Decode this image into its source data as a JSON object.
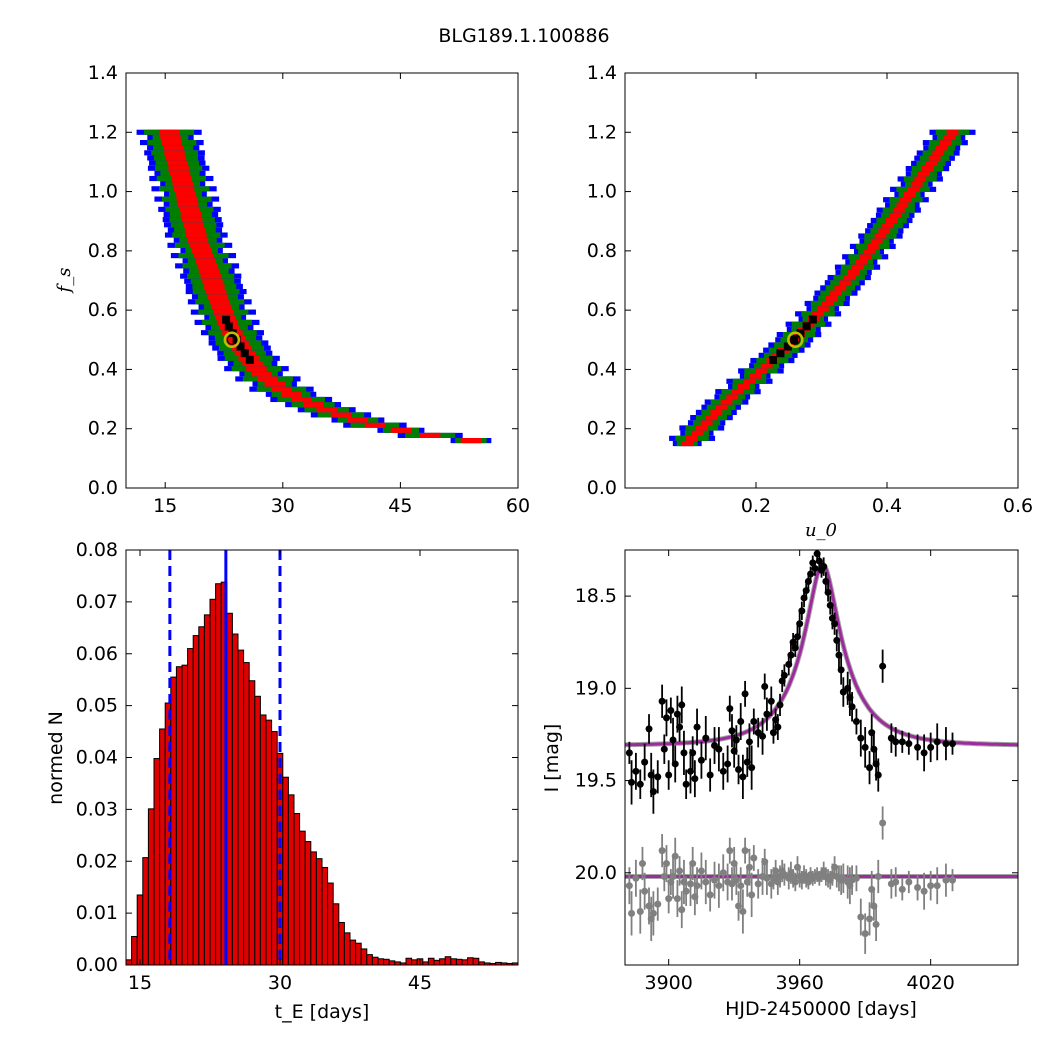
{
  "title": "BLG189.1.100886",
  "colors": {
    "level_1sigma": "#ff0000",
    "level_2sigma": "#007f00",
    "level_3sigma": "#0000ff",
    "best_cells": "#000000",
    "best_marker_edge": "#bfbf00",
    "hist_bar": "#e00000",
    "hist_lines": "#0000ff",
    "model_curve": "#9e2b9e",
    "data_points": "#000000",
    "residual_points": "#808080"
  },
  "chart_data": [
    {
      "id": "tE-fs",
      "type": "heatmap",
      "xlabel": "",
      "ylabel": "f_s",
      "xlim": [
        10,
        60
      ],
      "ylim": [
        0.0,
        1.4
      ],
      "xticks": [
        "15",
        "30",
        "45",
        "60"
      ],
      "yticks": [
        "0.0",
        "0.2",
        "0.4",
        "0.6",
        "0.8",
        "1.0",
        "1.2",
        "1.4"
      ],
      "band_centerline": [
        [
          15.5,
          1.2
        ],
        [
          17,
          1.05
        ],
        [
          19,
          0.85
        ],
        [
          21,
          0.7
        ],
        [
          23,
          0.55
        ],
        [
          25,
          0.46
        ],
        [
          27,
          0.39
        ],
        [
          30,
          0.33
        ],
        [
          33,
          0.29
        ],
        [
          37,
          0.25
        ],
        [
          42,
          0.21
        ],
        [
          48,
          0.18
        ],
        [
          54,
          0.16
        ]
      ],
      "band_half_width_x": {
        "red": 1.3,
        "green": 2.0,
        "blue": 2.6
      },
      "best_fit": {
        "x": 23.5,
        "y": 0.5
      }
    },
    {
      "id": "u0-fs",
      "type": "heatmap",
      "xlabel": "u_0",
      "ylabel": "",
      "xlim": [
        0.0,
        0.6
      ],
      "ylim": [
        0.0,
        1.4
      ],
      "xticks": [
        "0.2",
        "0.4",
        "0.6"
      ],
      "yticks": [
        "0.0",
        "0.2",
        "0.4",
        "0.6",
        "0.8",
        "1.0",
        "1.2",
        "1.4"
      ],
      "band_centerline": [
        [
          0.095,
          0.15
        ],
        [
          0.15,
          0.28
        ],
        [
          0.2,
          0.38
        ],
        [
          0.25,
          0.48
        ],
        [
          0.3,
          0.6
        ],
        [
          0.35,
          0.73
        ],
        [
          0.4,
          0.88
        ],
        [
          0.45,
          1.04
        ],
        [
          0.5,
          1.2
        ]
      ],
      "band_half_width_x": {
        "red": 0.009,
        "green": 0.016,
        "blue": 0.022
      },
      "best_fit": {
        "x": 0.26,
        "y": 0.5
      }
    },
    {
      "id": "tE-hist",
      "type": "bar",
      "xlabel": "t_E  [days]",
      "ylabel": "normed N",
      "xlim": [
        13.5,
        55.5
      ],
      "ylim": [
        0.0,
        0.08
      ],
      "xticks": [
        "15",
        "30",
        "45"
      ],
      "yticks": [
        "0.00",
        "0.01",
        "0.02",
        "0.03",
        "0.04",
        "0.05",
        "0.06",
        "0.07",
        "0.08"
      ],
      "bin_width": 0.6,
      "x_start": 13.5,
      "values": [
        0.001,
        0.0055,
        0.0135,
        0.0207,
        0.0301,
        0.0398,
        0.0455,
        0.0505,
        0.0555,
        0.0575,
        0.0578,
        0.061,
        0.0635,
        0.0652,
        0.0675,
        0.0705,
        0.0735,
        0.0738,
        0.0678,
        0.0638,
        0.0607,
        0.0583,
        0.0548,
        0.0518,
        0.0482,
        0.0472,
        0.045,
        0.0408,
        0.0362,
        0.0328,
        0.0292,
        0.0258,
        0.0238,
        0.0218,
        0.0205,
        0.0188,
        0.0158,
        0.0118,
        0.0082,
        0.0062,
        0.0048,
        0.0042,
        0.0031,
        0.002,
        0.0015,
        0.0012,
        0.0011,
        0.0008,
        0.0006,
        0.0004,
        0.0013,
        0.001,
        0.0012,
        0.0006,
        0.0013,
        0.0009,
        0.0012,
        0.0016,
        0.0012,
        0.0011,
        0.001,
        0.0014,
        0.0013,
        0.0006,
        0.0004,
        0.0003,
        0.0005,
        0.0004,
        0.0003,
        0.0004
      ],
      "median": 24.2,
      "percentiles": [
        18.2,
        30.0
      ]
    },
    {
      "id": "lightcurve",
      "type": "scatter",
      "xlabel": "HJD-2450000 [days]",
      "ylabel": "I [mag]",
      "xlim": [
        3880,
        4060
      ],
      "ylim": [
        20.5,
        18.25
      ],
      "xticks": [
        "3900",
        "3960",
        "4020"
      ],
      "yticks": [
        "18.5",
        "19.0",
        "19.5",
        "20.0"
      ],
      "model": {
        "t0": 3970.5,
        "tE": 24.2,
        "u0": 0.26,
        "fs": 0.5,
        "I_base": 19.31
      },
      "residual_baseline": 20.02,
      "data": [
        [
          3882,
          19.35,
          0.06
        ],
        [
          3883,
          19.51,
          0.12
        ],
        [
          3885,
          19.45,
          0.1
        ],
        [
          3887,
          19.52,
          0.08
        ],
        [
          3889,
          19.4,
          0.1
        ],
        [
          3891,
          19.22,
          0.08
        ],
        [
          3892,
          19.47,
          0.12
        ],
        [
          3893,
          19.56,
          0.12
        ],
        [
          3895,
          19.48,
          0.09
        ],
        [
          3897,
          19.07,
          0.09
        ],
        [
          3898,
          19.33,
          0.08
        ],
        [
          3899,
          19.16,
          0.1
        ],
        [
          3900,
          19.47,
          0.08
        ],
        [
          3901,
          19.12,
          0.07
        ],
        [
          3902,
          19.28,
          0.12
        ],
        [
          3903,
          19.41,
          0.1
        ],
        [
          3904,
          19.14,
          0.1
        ],
        [
          3905,
          19.21,
          0.08
        ],
        [
          3906,
          19.09,
          0.1
        ],
        [
          3907,
          19.35,
          0.12
        ],
        [
          3908,
          19.52,
          0.08
        ],
        [
          3910,
          19.45,
          0.12
        ],
        [
          3911,
          19.35,
          0.09
        ],
        [
          3912,
          19.49,
          0.1
        ],
        [
          3913,
          19.21,
          0.1
        ],
        [
          3915,
          19.39,
          0.1
        ],
        [
          3917,
          19.27,
          0.12
        ],
        [
          3919,
          19.47,
          0.09
        ],
        [
          3921,
          19.31,
          0.1
        ],
        [
          3923,
          19.33,
          0.12
        ],
        [
          3925,
          19.45,
          0.1
        ],
        [
          3927,
          19.41,
          0.1
        ],
        [
          3928,
          19.11,
          0.07
        ],
        [
          3929,
          19.23,
          0.09
        ],
        [
          3930,
          19.34,
          0.09
        ],
        [
          3931,
          19.28,
          0.08
        ],
        [
          3932,
          19.44,
          0.08
        ],
        [
          3933,
          19.18,
          0.1
        ],
        [
          3934,
          19.48,
          0.12
        ],
        [
          3935,
          19.03,
          0.07
        ],
        [
          3936,
          19.4,
          0.08
        ],
        [
          3937,
          19.29,
          0.1
        ],
        [
          3938,
          19.43,
          0.12
        ],
        [
          3939,
          19.18,
          0.07
        ],
        [
          3941,
          19.24,
          0.08
        ],
        [
          3943,
          19.26,
          0.1
        ],
        [
          3944,
          18.99,
          0.07
        ],
        [
          3945,
          19.14,
          0.09
        ],
        [
          3947,
          19.07,
          0.08
        ],
        [
          3948,
          19.24,
          0.06
        ],
        [
          3949,
          19.17,
          0.06
        ],
        [
          3950,
          19.21,
          0.07
        ],
        [
          3951,
          19.09,
          0.06
        ],
        [
          3952,
          18.96,
          0.06
        ],
        [
          3953,
          18.93,
          0.06
        ],
        [
          3955,
          18.87,
          0.06
        ],
        [
          3956,
          18.82,
          0.06
        ],
        [
          3957,
          18.75,
          0.05
        ],
        [
          3958,
          18.78,
          0.05
        ],
        [
          3959,
          18.72,
          0.06
        ],
        [
          3960,
          18.65,
          0.06
        ],
        [
          3961,
          18.58,
          0.05
        ],
        [
          3962,
          18.51,
          0.05
        ],
        [
          3963,
          18.47,
          0.05
        ],
        [
          3964,
          18.42,
          0.04
        ],
        [
          3965,
          18.38,
          0.04
        ],
        [
          3966,
          18.32,
          0.04
        ],
        [
          3967,
          18.35,
          0.04
        ],
        [
          3968,
          18.27,
          0.04
        ],
        [
          3969,
          18.31,
          0.04
        ],
        [
          3970,
          18.36,
          0.04
        ],
        [
          3971,
          18.34,
          0.05
        ],
        [
          3972,
          18.42,
          0.05
        ],
        [
          3973,
          18.48,
          0.05
        ],
        [
          3974,
          18.55,
          0.05
        ],
        [
          3975,
          18.62,
          0.06
        ],
        [
          3976,
          18.65,
          0.06
        ],
        [
          3977,
          18.74,
          0.06
        ],
        [
          3978,
          18.82,
          0.07
        ],
        [
          3979,
          18.9,
          0.08
        ],
        [
          3980,
          19.02,
          0.08
        ],
        [
          3982,
          19.0,
          0.09
        ],
        [
          3983,
          19.05,
          0.1
        ],
        [
          3984,
          19.1,
          0.08
        ],
        [
          3986,
          19.18,
          0.07
        ],
        [
          3988,
          19.27,
          0.1
        ],
        [
          3990,
          19.32,
          0.11
        ],
        [
          3992,
          19.43,
          0.09
        ],
        [
          3993,
          19.24,
          0.1
        ],
        [
          3994,
          19.33,
          0.08
        ],
        [
          3995,
          19.41,
          0.09
        ],
        [
          3996,
          19.47,
          0.09
        ],
        [
          3998,
          18.88,
          0.09
        ],
        [
          4002,
          19.27,
          0.08
        ],
        [
          4004,
          19.29,
          0.08
        ],
        [
          4007,
          19.29,
          0.06
        ],
        [
          4010,
          19.3,
          0.06
        ],
        [
          4014,
          19.32,
          0.07
        ],
        [
          4017,
          19.35,
          0.1
        ],
        [
          4020,
          19.32,
          0.08
        ],
        [
          4023,
          19.29,
          0.1
        ],
        [
          4027,
          19.3,
          0.09
        ],
        [
          4030,
          19.3,
          0.06
        ]
      ],
      "residuals": [
        [
          3882,
          20.07,
          0.1
        ],
        [
          3883,
          20.22,
          0.12
        ],
        [
          3885,
          20.03,
          0.1
        ],
        [
          3887,
          20.21,
          0.12
        ],
        [
          3888,
          19.95,
          0.09
        ],
        [
          3889,
          20.1,
          0.1
        ],
        [
          3891,
          20.18,
          0.1
        ],
        [
          3892,
          20.25,
          0.12
        ],
        [
          3893,
          20.22,
          0.12
        ],
        [
          3895,
          20.17,
          0.09
        ],
        [
          3897,
          19.88,
          0.09
        ],
        [
          3898,
          20.02,
          0.08
        ],
        [
          3899,
          19.95,
          0.1
        ],
        [
          3900,
          20.14,
          0.08
        ],
        [
          3901,
          20.05,
          0.07
        ],
        [
          3902,
          20.02,
          0.12
        ],
        [
          3903,
          19.91,
          0.1
        ],
        [
          3904,
          20.14,
          0.1
        ],
        [
          3905,
          19.99,
          0.08
        ],
        [
          3906,
          20.2,
          0.1
        ],
        [
          3907,
          20.05,
          0.12
        ],
        [
          3908,
          20.1,
          0.08
        ],
        [
          3910,
          20.06,
          0.12
        ],
        [
          3911,
          19.95,
          0.09
        ],
        [
          3912,
          20.13,
          0.1
        ],
        [
          3913,
          20.07,
          0.1
        ],
        [
          3915,
          19.99,
          0.1
        ],
        [
          3917,
          20.05,
          0.12
        ],
        [
          3919,
          20.12,
          0.09
        ],
        [
          3921,
          20.04,
          0.1
        ],
        [
          3923,
          20.07,
          0.12
        ],
        [
          3925,
          20.0,
          0.1
        ],
        [
          3927,
          20.05,
          0.1
        ],
        [
          3928,
          19.88,
          0.07
        ],
        [
          3929,
          20.06,
          0.09
        ],
        [
          3930,
          19.95,
          0.09
        ],
        [
          3931,
          20.04,
          0.08
        ],
        [
          3932,
          20.18,
          0.08
        ],
        [
          3933,
          20.07,
          0.1
        ],
        [
          3934,
          20.21,
          0.12
        ],
        [
          3935,
          19.88,
          0.07
        ],
        [
          3936,
          20.05,
          0.08
        ],
        [
          3937,
          19.97,
          0.1
        ],
        [
          3938,
          20.12,
          0.12
        ],
        [
          3939,
          19.92,
          0.07
        ],
        [
          3941,
          20.06,
          0.08
        ],
        [
          3943,
          20.02,
          0.1
        ],
        [
          3944,
          19.94,
          0.07
        ],
        [
          3945,
          20.03,
          0.09
        ],
        [
          3947,
          20.06,
          0.08
        ],
        [
          3948,
          20.03,
          0.06
        ],
        [
          3949,
          19.99,
          0.06
        ],
        [
          3950,
          20.05,
          0.07
        ],
        [
          3951,
          20.02,
          0.06
        ],
        [
          3952,
          19.99,
          0.06
        ],
        [
          3953,
          20.01,
          0.06
        ],
        [
          3955,
          20.03,
          0.06
        ],
        [
          3956,
          20.0,
          0.06
        ],
        [
          3957,
          20.03,
          0.05
        ],
        [
          3958,
          20.05,
          0.05
        ],
        [
          3959,
          19.97,
          0.06
        ],
        [
          3960,
          20.02,
          0.06
        ],
        [
          3961,
          20.04,
          0.05
        ],
        [
          3962,
          20.01,
          0.05
        ],
        [
          3963,
          20.03,
          0.05
        ],
        [
          3964,
          20.05,
          0.04
        ],
        [
          3965,
          20.01,
          0.04
        ],
        [
          3966,
          20.03,
          0.04
        ],
        [
          3967,
          20.02,
          0.04
        ],
        [
          3968,
          20.01,
          0.04
        ],
        [
          3969,
          20.03,
          0.04
        ],
        [
          3970,
          20.01,
          0.04
        ],
        [
          3971,
          19.99,
          0.05
        ],
        [
          3972,
          20.02,
          0.05
        ],
        [
          3973,
          20.03,
          0.05
        ],
        [
          3974,
          20.04,
          0.05
        ],
        [
          3975,
          20.01,
          0.06
        ],
        [
          3976,
          19.97,
          0.06
        ],
        [
          3977,
          20.02,
          0.06
        ],
        [
          3978,
          20.03,
          0.07
        ],
        [
          3979,
          20.04,
          0.08
        ],
        [
          3980,
          20.03,
          0.08
        ],
        [
          3982,
          20.05,
          0.09
        ],
        [
          3983,
          20.07,
          0.1
        ],
        [
          3984,
          20.04,
          0.08
        ],
        [
          3986,
          20.03,
          0.07
        ],
        [
          3988,
          20.24,
          0.1
        ],
        [
          3990,
          20.33,
          0.11
        ],
        [
          3992,
          20.25,
          0.09
        ],
        [
          3993,
          20.09,
          0.1
        ],
        [
          3994,
          20.18,
          0.08
        ],
        [
          3995,
          20.28,
          0.09
        ],
        [
          3996,
          20.02,
          0.09
        ],
        [
          3998,
          19.73,
          0.09
        ],
        [
          4002,
          20.06,
          0.08
        ],
        [
          4004,
          20.05,
          0.08
        ],
        [
          4007,
          20.09,
          0.06
        ],
        [
          4010,
          20.05,
          0.06
        ],
        [
          4014,
          20.08,
          0.07
        ],
        [
          4017,
          20.1,
          0.1
        ],
        [
          4020,
          20.07,
          0.08
        ],
        [
          4023,
          20.07,
          0.1
        ],
        [
          4027,
          20.04,
          0.09
        ],
        [
          4030,
          20.04,
          0.06
        ]
      ]
    }
  ]
}
